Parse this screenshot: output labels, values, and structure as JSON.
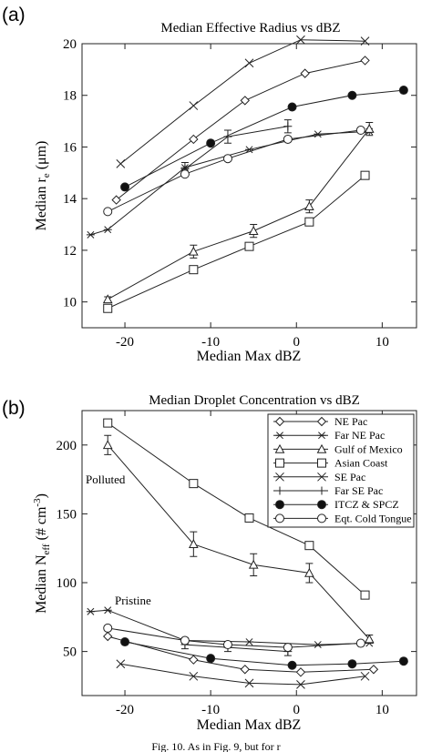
{
  "panels": [
    {
      "label": "(a)"
    },
    {
      "label": "(b)"
    }
  ],
  "caption": "Fig. 10. As in Fig. 9, but for r",
  "chart_data": [
    {
      "type": "line",
      "title": "Median Effective Radius vs dBZ",
      "xlabel": "Median Max dBZ",
      "ylabel_main": "Median r",
      "ylabel_sub": "e",
      "ylabel_unit": " (μm)",
      "xlim": [
        -25,
        14
      ],
      "ylim": [
        9,
        20
      ],
      "xticks": [
        -20,
        -10,
        0,
        10
      ],
      "yticks": [
        10,
        12,
        14,
        16,
        18,
        20
      ],
      "grid": false,
      "series": [
        {
          "marker": "diamond",
          "x": [
            -21,
            -12,
            -6,
            1,
            8
          ],
          "y": [
            13.95,
            16.3,
            17.8,
            18.85,
            19.35
          ]
        },
        {
          "marker": "asterisk",
          "x": [
            -24,
            -22,
            -13,
            -5.5,
            2.5,
            8.5
          ],
          "y": [
            12.6,
            12.8,
            15.2,
            15.9,
            16.5,
            16.6
          ]
        },
        {
          "marker": "triangle",
          "x": [
            -22,
            -12,
            -5,
            1.5,
            8.5
          ],
          "y": [
            10.1,
            11.95,
            12.75,
            13.7,
            16.7
          ],
          "yerr": [
            0.1,
            0.25,
            0.25,
            0.25,
            0.25
          ]
        },
        {
          "marker": "square",
          "x": [
            -22,
            -12,
            -5.5,
            1.5,
            8
          ],
          "y": [
            9.75,
            11.25,
            12.15,
            13.1,
            14.9
          ]
        },
        {
          "marker": "x",
          "x": [
            -20.5,
            -12,
            -5.5,
            0.5,
            8
          ],
          "y": [
            15.35,
            17.6,
            19.25,
            20.15,
            20.1
          ]
        },
        {
          "marker": "plus",
          "x": [
            -13,
            -8,
            -1
          ],
          "y": [
            15.15,
            16.4,
            16.8
          ],
          "yerr": [
            0.25,
            0.25,
            0.25
          ]
        },
        {
          "marker": "filled-circle",
          "x": [
            -20,
            -10,
            -0.5,
            6.5,
            12.5
          ],
          "y": [
            14.45,
            16.15,
            17.55,
            18.0,
            18.2
          ]
        },
        {
          "marker": "circle",
          "x": [
            -22,
            -13,
            -8,
            -1,
            7.5
          ],
          "y": [
            13.5,
            14.95,
            15.55,
            16.3,
            16.65
          ]
        }
      ]
    },
    {
      "type": "line",
      "title": "Median Droplet Concentration vs dBZ",
      "xlabel": "Median Max dBZ",
      "ylabel_main": "Median N",
      "ylabel_sub": "eff",
      "ylabel_unit": " (# cm",
      "ylabel_sup": "-3",
      "ylabel_close": ")",
      "xlim": [
        -25,
        14
      ],
      "ylim": [
        18,
        225
      ],
      "xticks": [
        -20,
        -10,
        0,
        10
      ],
      "yticks": [
        50,
        100,
        150,
        200
      ],
      "grid": false,
      "annotations": [
        "Polluted",
        "Pristine"
      ],
      "legend_position": "top-right",
      "series": [
        {
          "name": "NE Pac",
          "marker": "diamond",
          "x": [
            -22,
            -12,
            -6,
            0.5,
            9
          ],
          "y": [
            61,
            44,
            37,
            35,
            37
          ]
        },
        {
          "name": "Far NE Pac",
          "marker": "asterisk",
          "x": [
            -24,
            -22,
            -13,
            -5.5,
            2.5,
            8.5
          ],
          "y": [
            79,
            80,
            58,
            57,
            55,
            56
          ]
        },
        {
          "name": "Gulf of Mexico",
          "marker": "triangle",
          "x": [
            -22,
            -12,
            -5,
            1.5,
            8.5
          ],
          "y": [
            200,
            128,
            113,
            107,
            59
          ],
          "yerr": [
            7,
            9,
            8,
            7,
            3
          ]
        },
        {
          "name": "Asian Coast",
          "marker": "square",
          "x": [
            -22,
            -12,
            -5.5,
            1.5,
            8
          ],
          "y": [
            216,
            172,
            147,
            127,
            91
          ]
        },
        {
          "name": "SE Pac",
          "marker": "x",
          "x": [
            -20.5,
            -12,
            -5.5,
            0.5,
            8
          ],
          "y": [
            41,
            32,
            27,
            26,
            32
          ]
        },
        {
          "name": "Far SE Pac",
          "marker": "plus",
          "x": [
            -13,
            -8,
            -1
          ],
          "y": [
            55,
            53,
            50
          ],
          "yerr": [
            3,
            3,
            3
          ]
        },
        {
          "name": "ITCZ & SPCZ",
          "marker": "filled-circle",
          "x": [
            -20,
            -10,
            -0.5,
            6.5,
            12.5
          ],
          "y": [
            57,
            45,
            40,
            41,
            43
          ]
        },
        {
          "name": "Eqt. Cold Tongue",
          "marker": "circle",
          "x": [
            -22,
            -13,
            -8,
            -1,
            7.5
          ],
          "y": [
            67,
            58,
            55,
            53,
            56
          ]
        }
      ]
    }
  ]
}
